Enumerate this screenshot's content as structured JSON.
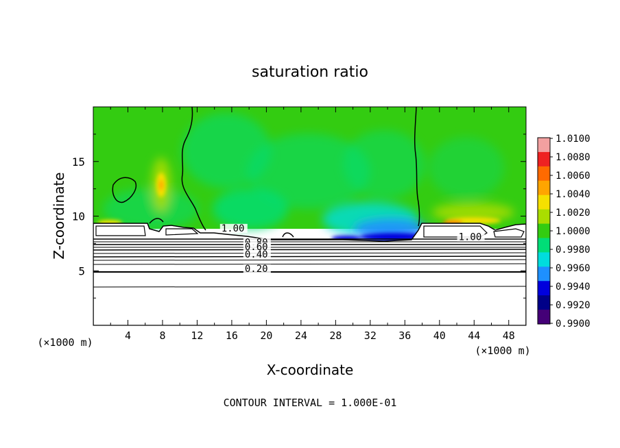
{
  "chart_data": {
    "type": "heatmap",
    "title": "saturation ratio",
    "xlabel": "X-coordinate",
    "ylabel": "Z-coordinate",
    "x_unit": "(×1000 m)",
    "z_unit": "(×1000 m)",
    "xlim": [
      0,
      50
    ],
    "ylim": [
      0,
      20
    ],
    "x_ticks": [
      4,
      8,
      12,
      16,
      20,
      24,
      28,
      32,
      36,
      40,
      44,
      48
    ],
    "y_ticks": [
      5,
      10,
      15
    ],
    "footer": "CONTOUR INTERVAL = 1.000E-01",
    "colorbar": {
      "labels": [
        "1.0100",
        "1.0080",
        "1.0060",
        "1.0040",
        "1.0020",
        "1.0000",
        "0.9980",
        "0.9960",
        "0.9940",
        "0.9920",
        "0.9900"
      ],
      "min": 0.99,
      "max": 1.01,
      "colors": [
        "#f2a0a0",
        "#ee2222",
        "#ff6a00",
        "#ffa500",
        "#f5e000",
        "#aadd00",
        "#33cc11",
        "#00dd77",
        "#00dddd",
        "#1e90ff",
        "#0000dd",
        "#000088",
        "#440077"
      ]
    },
    "contour_labels": [
      {
        "text": "1.00",
        "x": 14.8,
        "y": 8.6
      },
      {
        "text": "1.00",
        "x": 42.2,
        "y": 7.8
      },
      {
        "text": "0.80",
        "x": 17.5,
        "y": 7.3
      },
      {
        "text": "0.60",
        "x": 17.5,
        "y": 6.9
      },
      {
        "text": "0.40",
        "x": 17.5,
        "y": 6.2
      },
      {
        "text": "0.20",
        "x": 17.5,
        "y": 4.9
      }
    ]
  }
}
